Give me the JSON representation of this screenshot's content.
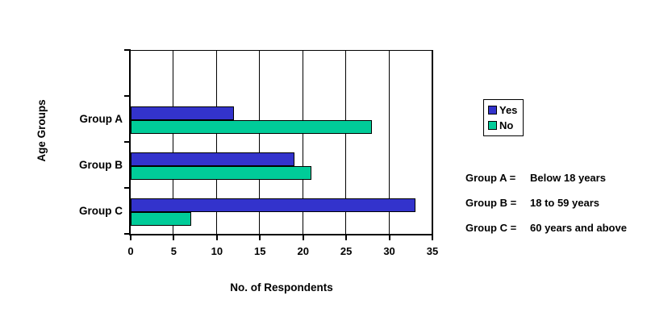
{
  "chart_data": {
    "type": "bar",
    "orientation": "horizontal",
    "categories": [
      "Group A",
      "Group B",
      "Group C"
    ],
    "series": [
      {
        "name": "Yes",
        "color": "#3333CC",
        "values": [
          12,
          19,
          33
        ]
      },
      {
        "name": "No",
        "color": "#00CC99",
        "values": [
          28,
          21,
          7
        ]
      }
    ],
    "xlabel": "No. of Respondents",
    "ylabel": "Age Groups",
    "xlim": [
      0,
      35
    ],
    "xticks": [
      0,
      5,
      10,
      15,
      20,
      25,
      30,
      35
    ],
    "grid": true,
    "legend_position": "right",
    "bar_border_color": "#000000",
    "axis_color": "#000000",
    "background_color": "#FFFFFF"
  },
  "annotations": [
    {
      "label": "Group A =",
      "value": "Below 18 years"
    },
    {
      "label": "Group B =",
      "value": "18 to 59 years"
    },
    {
      "label": "Group C =",
      "value": "60 years and above"
    }
  ]
}
